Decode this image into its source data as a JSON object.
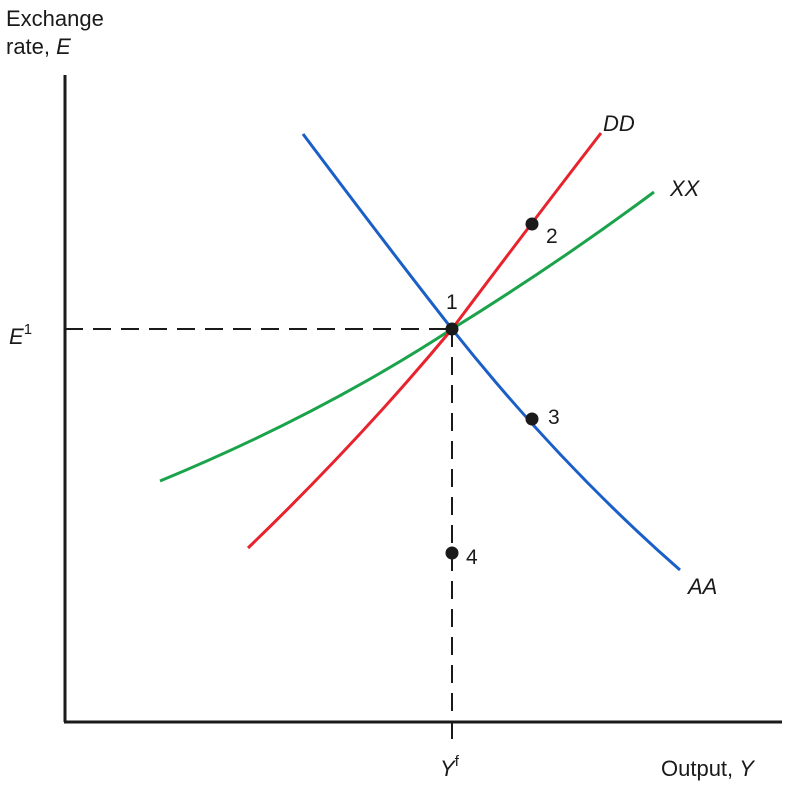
{
  "axes": {
    "y_title_line1": "Exchange",
    "y_title_line2_prefix": "rate, ",
    "y_title_line2_var": "E",
    "x_title_prefix": "Output, ",
    "x_title_var": "Y"
  },
  "ticks": {
    "e1_base": "E",
    "e1_sup": "1",
    "yf_base": "Y",
    "yf_sup": "f"
  },
  "curves": [
    {
      "id": "dd",
      "label": "DD",
      "color": "#e8232e"
    },
    {
      "id": "xx",
      "label": "XX",
      "color": "#1aa34a"
    },
    {
      "id": "aa",
      "label": "AA",
      "color": "#1a5fc8"
    }
  ],
  "points": [
    {
      "id": "p1",
      "label": "1"
    },
    {
      "id": "p2",
      "label": "2"
    },
    {
      "id": "p3",
      "label": "3"
    },
    {
      "id": "p4",
      "label": "4"
    }
  ]
}
